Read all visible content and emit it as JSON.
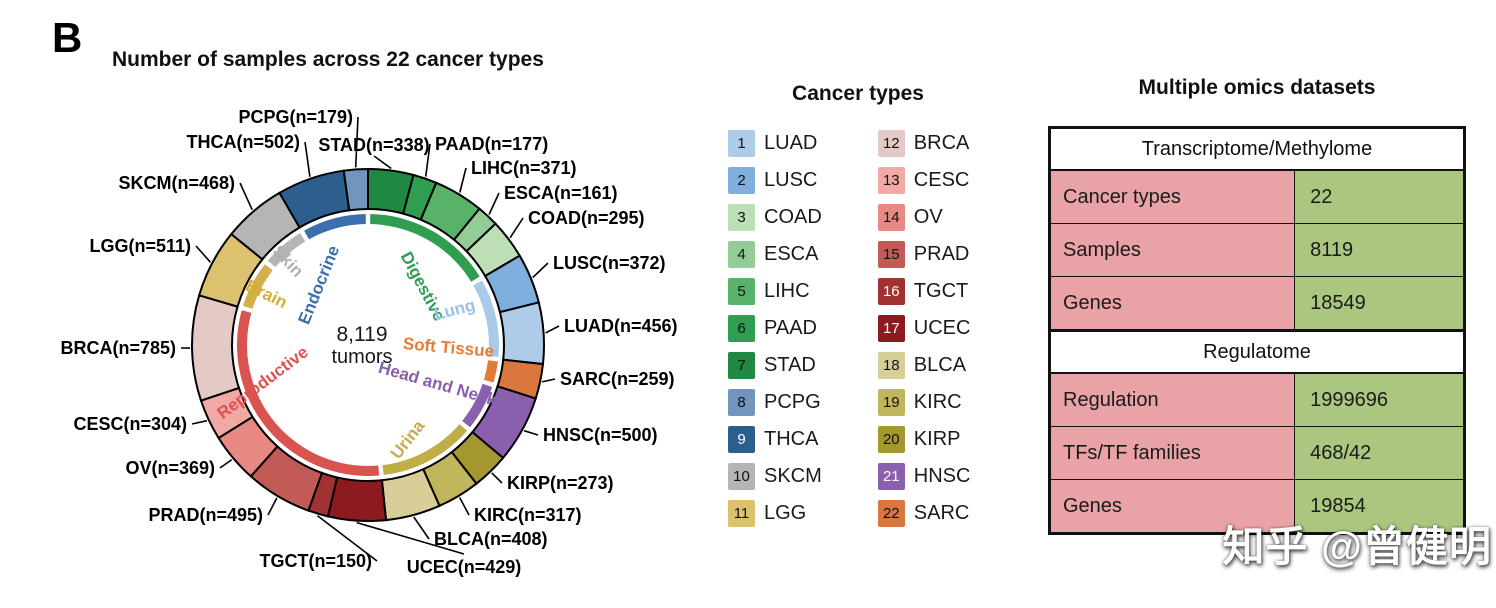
{
  "panel_label": "B",
  "title": "Number of samples across 22 cancer types",
  "watermark": "知乎 @曾健明",
  "chart_data": {
    "type": "pie",
    "subtype": "donut",
    "title": "Number of samples across 22 cancer types",
    "center_value": "8,119",
    "center_label": "tumors",
    "total": 8119,
    "segments": [
      {
        "num": 7,
        "id": "STAD",
        "n": 338,
        "label": "STAD(n=338)",
        "color": "#1f8843",
        "group": "Digestive"
      },
      {
        "num": 6,
        "id": "PAAD",
        "n": 177,
        "label": "PAAD(n=177)",
        "color": "#2f9e50",
        "group": "Digestive"
      },
      {
        "num": 5,
        "id": "LIHC",
        "n": 371,
        "label": "LIHC(n=371)",
        "color": "#58b268",
        "group": "Digestive"
      },
      {
        "num": 4,
        "id": "ESCA",
        "n": 161,
        "label": "ESCA(n=161)",
        "color": "#93cc96",
        "group": "Digestive"
      },
      {
        "num": 3,
        "id": "COAD",
        "n": 295,
        "label": "COAD(n=295)",
        "color": "#bcdfb6",
        "group": "Digestive"
      },
      {
        "num": 2,
        "id": "LUSC",
        "n": 372,
        "label": "LUSC(n=372)",
        "color": "#7fafdc",
        "group": "Lung"
      },
      {
        "num": 1,
        "id": "LUAD",
        "n": 456,
        "label": "LUAD(n=456)",
        "color": "#aecbe8",
        "group": "Lung"
      },
      {
        "num": 22,
        "id": "SARC",
        "n": 259,
        "label": "SARC(n=259)",
        "color": "#d9773f",
        "group": "Soft Tissue"
      },
      {
        "num": 21,
        "id": "HNSC",
        "n": 500,
        "label": "HNSC(n=500)",
        "color": "#8a5fae",
        "group": "Head and Neck"
      },
      {
        "num": 20,
        "id": "KIRP",
        "n": 273,
        "label": "KIRP(n=273)",
        "color": "#a5972f",
        "group": "Urina"
      },
      {
        "num": 19,
        "id": "KIRC",
        "n": 317,
        "label": "KIRC(n=317)",
        "color": "#c0b65c",
        "group": "Urina"
      },
      {
        "num": 18,
        "id": "BLCA",
        "n": 408,
        "label": "BLCA(n=408)",
        "color": "#d7cf97",
        "group": "Urina"
      },
      {
        "num": 17,
        "id": "UCEC",
        "n": 429,
        "label": "UCEC(n=429)",
        "color": "#8c1a1f",
        "group": "Reproductive"
      },
      {
        "num": 16,
        "id": "TGCT",
        "n": 150,
        "label": "TGCT(n=150)",
        "color": "#a13232",
        "group": "Reproductive"
      },
      {
        "num": 15,
        "id": "PRAD",
        "n": 495,
        "label": "PRAD(n=495)",
        "color": "#c25a55",
        "group": "Reproductive"
      },
      {
        "num": 14,
        "id": "OV",
        "n": 369,
        "label": "OV(n=369)",
        "color": "#e98983",
        "group": "Reproductive"
      },
      {
        "num": 13,
        "id": "CESC",
        "n": 304,
        "label": "CESC(n=304)",
        "color": "#f0a9a4",
        "group": "Reproductive"
      },
      {
        "num": 12,
        "id": "BRCA",
        "n": 785,
        "label": "BRCA(n=785)",
        "color": "#e4cac6",
        "group": "Reproductive"
      },
      {
        "num": 11,
        "id": "LGG",
        "n": 511,
        "label": "LGG(n=511)",
        "color": "#dcc26e",
        "group": "Brain"
      },
      {
        "num": 10,
        "id": "SKCM",
        "n": 468,
        "label": "SKCM(n=468)",
        "color": "#b5b5b5",
        "group": "Skin"
      },
      {
        "num": 9,
        "id": "THCA",
        "n": 502,
        "label": "THCA(n=502)",
        "color": "#2d5f8e",
        "group": "Endocrine"
      },
      {
        "num": 8,
        "id": "PCPG",
        "n": 179,
        "label": "PCPG(n=179)",
        "color": "#7195bf",
        "group": "Endocrine"
      }
    ],
    "groups": [
      {
        "name": "Digestive",
        "color": "#2f9e50",
        "text_color": "#2f9e50"
      },
      {
        "name": "Lung",
        "color": "#a9c9e8",
        "text_color": "#9cc0e6"
      },
      {
        "name": "Soft Tissue",
        "color": "#e07b3a",
        "text_color": "#e87c35"
      },
      {
        "name": "Head and Neck",
        "color": "#8a5fae",
        "text_color": "#8a5fae"
      },
      {
        "name": "Urina",
        "color": "#bfae45",
        "text_color": "#c9a94c"
      },
      {
        "name": "Reproductive",
        "color": "#d9534f",
        "text_color": "#e05252"
      },
      {
        "name": "Brain",
        "color": "#d4b04a",
        "text_color": "#d4af37"
      },
      {
        "name": "Skin",
        "color": "#b5b5b5",
        "text_color": "#b0b0b0"
      },
      {
        "name": "Endocrine",
        "color": "#3c6fae",
        "text_color": "#3c6fae"
      }
    ]
  },
  "legend": {
    "title": "Cancer types",
    "columns": [
      [
        {
          "num": 1,
          "label": "LUAD",
          "color": "#aecbe8",
          "num_color": "#111111"
        },
        {
          "num": 2,
          "label": "LUSC",
          "color": "#7fafdc",
          "num_color": "#111111"
        },
        {
          "num": 3,
          "label": "COAD",
          "color": "#bcdfb6",
          "num_color": "#111111"
        },
        {
          "num": 4,
          "label": "ESCA",
          "color": "#93cc96",
          "num_color": "#111111"
        },
        {
          "num": 5,
          "label": "LIHC",
          "color": "#58b268",
          "num_color": "#111111"
        },
        {
          "num": 6,
          "label": "PAAD",
          "color": "#2f9e50",
          "num_color": "#111111"
        },
        {
          "num": 7,
          "label": "STAD",
          "color": "#1f8843",
          "num_color": "#111111"
        },
        {
          "num": 8,
          "label": "PCPG",
          "color": "#7195bf",
          "num_color": "#111111"
        },
        {
          "num": 9,
          "label": "THCA",
          "color": "#2d5f8e",
          "num_color": "#ffffff"
        },
        {
          "num": 10,
          "label": "SKCM",
          "color": "#b5b5b5",
          "num_color": "#111111"
        },
        {
          "num": 11,
          "label": "LGG",
          "color": "#dcc26e",
          "num_color": "#111111"
        }
      ],
      [
        {
          "num": 12,
          "label": "BRCA",
          "color": "#e4cac6",
          "num_color": "#111111"
        },
        {
          "num": 13,
          "label": "CESC",
          "color": "#f0a9a4",
          "num_color": "#111111"
        },
        {
          "num": 14,
          "label": "OV",
          "color": "#e98983",
          "num_color": "#111111"
        },
        {
          "num": 15,
          "label": "PRAD",
          "color": "#c25a55",
          "num_color": "#111111"
        },
        {
          "num": 16,
          "label": "TGCT",
          "color": "#a13232",
          "num_color": "#ffffff"
        },
        {
          "num": 17,
          "label": "UCEC",
          "color": "#8c1a1f",
          "num_color": "#ffffff"
        },
        {
          "num": 18,
          "label": "BLCA",
          "color": "#d7cf97",
          "num_color": "#111111"
        },
        {
          "num": 19,
          "label": "KIRC",
          "color": "#c0b65c",
          "num_color": "#111111"
        },
        {
          "num": 20,
          "label": "KIRP",
          "color": "#a5972f",
          "num_color": "#111111"
        },
        {
          "num": 21,
          "label": "HNSC",
          "color": "#8a5fae",
          "num_color": "#ffffff"
        },
        {
          "num": 22,
          "label": "SARC",
          "color": "#d9773f",
          "num_color": "#111111"
        }
      ]
    ]
  },
  "table": {
    "title": "Multiple omics datasets",
    "label_bg": "#e9a3a6",
    "value_bg": "#abc77f",
    "sections": [
      {
        "header": "Transcriptome/Methylome",
        "rows": [
          {
            "label": "Cancer types",
            "value": "22"
          },
          {
            "label": "Samples",
            "value": "8119"
          },
          {
            "label": "Genes",
            "value": "18549"
          }
        ]
      },
      {
        "header": "Regulatome",
        "rows": [
          {
            "label": "Regulation",
            "value": "1999696"
          },
          {
            "label": "TFs/TF families",
            "value": "468/42"
          },
          {
            "label": "Genes",
            "value": "19854"
          }
        ]
      }
    ]
  }
}
